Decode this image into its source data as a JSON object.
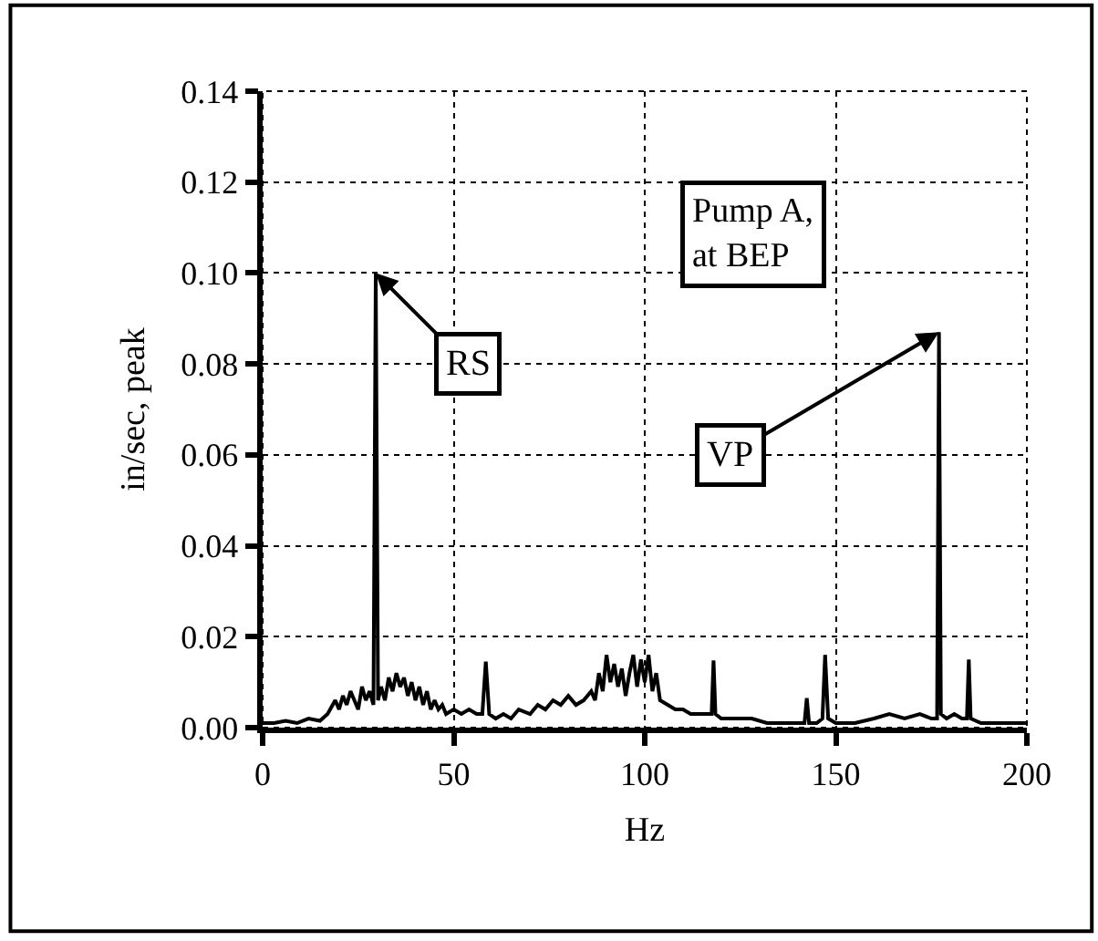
{
  "chart_data": {
    "type": "line",
    "xlabel": "Hz",
    "ylabel": "in/sec, peak",
    "x": [
      0,
      3,
      6,
      9,
      12,
      15,
      17,
      19,
      20,
      21,
      22,
      23,
      24,
      25,
      26,
      27,
      28,
      29,
      29.6,
      30.2,
      31,
      32,
      33,
      34,
      35,
      36,
      37,
      38,
      39,
      40,
      41,
      42,
      43,
      44,
      45,
      46,
      47,
      48,
      50,
      52,
      54,
      56,
      57.5,
      58.4,
      59.3,
      61,
      63,
      65,
      67,
      70,
      72,
      74,
      76,
      78,
      80,
      82,
      84,
      86,
      87,
      88,
      89,
      90,
      91,
      92,
      93,
      94,
      95,
      96,
      97,
      98,
      99,
      100,
      101,
      102,
      103,
      104,
      106,
      108,
      110,
      112,
      114,
      116,
      117.5,
      118,
      118.5,
      120,
      124,
      128,
      132,
      136,
      140,
      141.8,
      142.4,
      143,
      145,
      146.5,
      147.2,
      148,
      150,
      155,
      160,
      164,
      168,
      172,
      175,
      176.5,
      177,
      177.5,
      179,
      181,
      183,
      184.3,
      184.8,
      185.3,
      188,
      192,
      196,
      200
    ],
    "series": [
      {
        "color": "#000000",
        "values": [
          0.001,
          0.001,
          0.0015,
          0.001,
          0.002,
          0.0015,
          0.003,
          0.006,
          0.004,
          0.007,
          0.005,
          0.008,
          0.006,
          0.004,
          0.009,
          0.006,
          0.008,
          0.005,
          0.1,
          0.006,
          0.009,
          0.006,
          0.011,
          0.008,
          0.012,
          0.009,
          0.011,
          0.007,
          0.01,
          0.006,
          0.009,
          0.005,
          0.008,
          0.004,
          0.006,
          0.004,
          0.005,
          0.003,
          0.004,
          0.003,
          0.004,
          0.003,
          0.003,
          0.0145,
          0.003,
          0.002,
          0.003,
          0.002,
          0.004,
          0.003,
          0.005,
          0.004,
          0.006,
          0.005,
          0.007,
          0.005,
          0.006,
          0.008,
          0.006,
          0.012,
          0.008,
          0.016,
          0.01,
          0.014,
          0.009,
          0.013,
          0.007,
          0.012,
          0.016,
          0.009,
          0.015,
          0.01,
          0.016,
          0.008,
          0.012,
          0.006,
          0.005,
          0.004,
          0.004,
          0.003,
          0.003,
          0.003,
          0.003,
          0.0148,
          0.003,
          0.002,
          0.002,
          0.002,
          0.001,
          0.001,
          0.001,
          0.001,
          0.0065,
          0.001,
          0.001,
          0.002,
          0.016,
          0.002,
          0.001,
          0.001,
          0.002,
          0.003,
          0.002,
          0.003,
          0.002,
          0.002,
          0.087,
          0.003,
          0.002,
          0.003,
          0.002,
          0.002,
          0.015,
          0.002,
          0.001,
          0.001,
          0.001,
          0.001
        ]
      }
    ],
    "xlim": [
      0,
      200
    ],
    "xticks": [
      0,
      50,
      100,
      150,
      200
    ],
    "ylim": [
      0,
      0.14
    ],
    "yticks": [
      {
        "value": 0,
        "label": "0.00"
      },
      {
        "value": 0.02,
        "label": "0.02"
      },
      {
        "value": 0.04,
        "label": "0.04"
      },
      {
        "value": 0.06,
        "label": "0.06"
      },
      {
        "value": 0.08,
        "label": "0.08"
      },
      {
        "value": 0.1,
        "label": "0.10"
      },
      {
        "value": 0.12,
        "label": "0.12"
      },
      {
        "value": 0.14,
        "label": "0.14"
      }
    ],
    "annotations": [
      {
        "text": "RS",
        "x": 29.6,
        "y": 0.1
      },
      {
        "text": "VP",
        "x": 177,
        "y": 0.087
      },
      "Pump A,\nat BEP"
    ],
    "grid": true,
    "marker": "none",
    "line_style": "solid"
  }
}
